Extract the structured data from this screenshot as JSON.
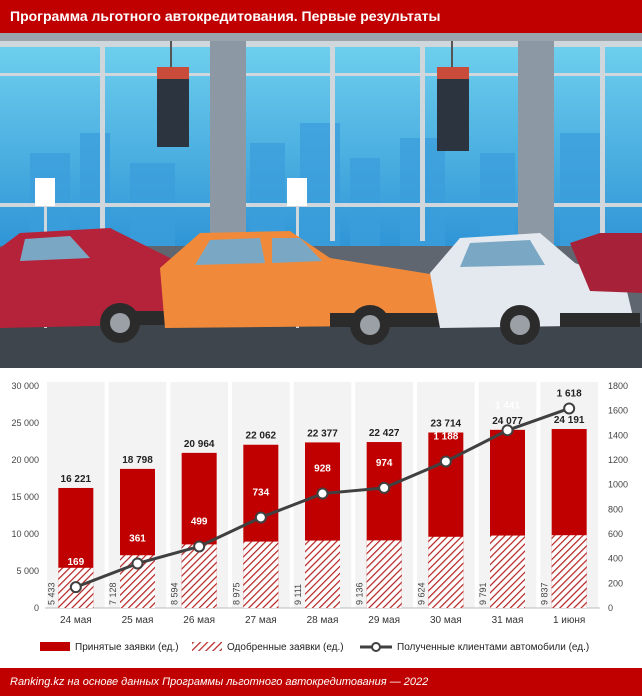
{
  "header": {
    "title": "Программа льготного автокредитования. Первые результаты"
  },
  "footer": {
    "source": "Ranking.kz на основе данных Программы льготного автокредитования — 2022"
  },
  "colors": {
    "brand": "#c00000",
    "accepted": "#c00000",
    "approved": "#c00000",
    "line": "#404040"
  },
  "chart_data": {
    "type": "bar",
    "categories": [
      "24 мая",
      "25 мая",
      "26 мая",
      "27 мая",
      "28 мая",
      "29 мая",
      "30 мая",
      "31 мая",
      "1 июня"
    ],
    "series": [
      {
        "name": "Принятые заявки (ед.)",
        "type": "bar",
        "axis": "left",
        "values": [
          16221,
          18798,
          20964,
          22062,
          22377,
          22427,
          23714,
          24077,
          24191
        ],
        "labels": [
          "16 221",
          "18 798",
          "20 964",
          "22 062",
          "22 377",
          "22 427",
          "23 714",
          "24 077",
          "24 191"
        ]
      },
      {
        "name": "Одобренные заявки (ед.)",
        "type": "bar-hatched",
        "axis": "left",
        "values": [
          5433,
          7128,
          8594,
          8975,
          9111,
          9136,
          9624,
          9791,
          9837
        ],
        "labels": [
          "5 433",
          "7 128",
          "8 594",
          "8 975",
          "9 111",
          "9 136",
          "9 624",
          "9 791",
          "9 837"
        ]
      },
      {
        "name": "Полученные клиентами автомобили (ед.)",
        "type": "line",
        "axis": "right",
        "values": [
          169,
          361,
          499,
          734,
          928,
          974,
          1188,
          1441,
          1618
        ],
        "labels": [
          "169",
          "361",
          "499",
          "734",
          "928",
          "974",
          "1 188",
          "1 441",
          "1 618"
        ]
      }
    ],
    "y_left": {
      "min": 0,
      "max": 30000,
      "ticks": [
        0,
        5000,
        10000,
        15000,
        20000,
        25000,
        30000
      ],
      "tick_labels": [
        "0",
        "5 000",
        "10 000",
        "15 000",
        "20 000",
        "25 000",
        "30 000"
      ]
    },
    "y_right": {
      "min": 0,
      "max": 1800,
      "ticks": [
        0,
        200,
        400,
        600,
        800,
        1000,
        1200,
        1400,
        1600,
        1800
      ],
      "tick_labels": [
        "0",
        "200",
        "400",
        "600",
        "800",
        "1000",
        "1200",
        "1400",
        "1600",
        "1800"
      ]
    },
    "legend_position": "bottom",
    "grid": false
  }
}
